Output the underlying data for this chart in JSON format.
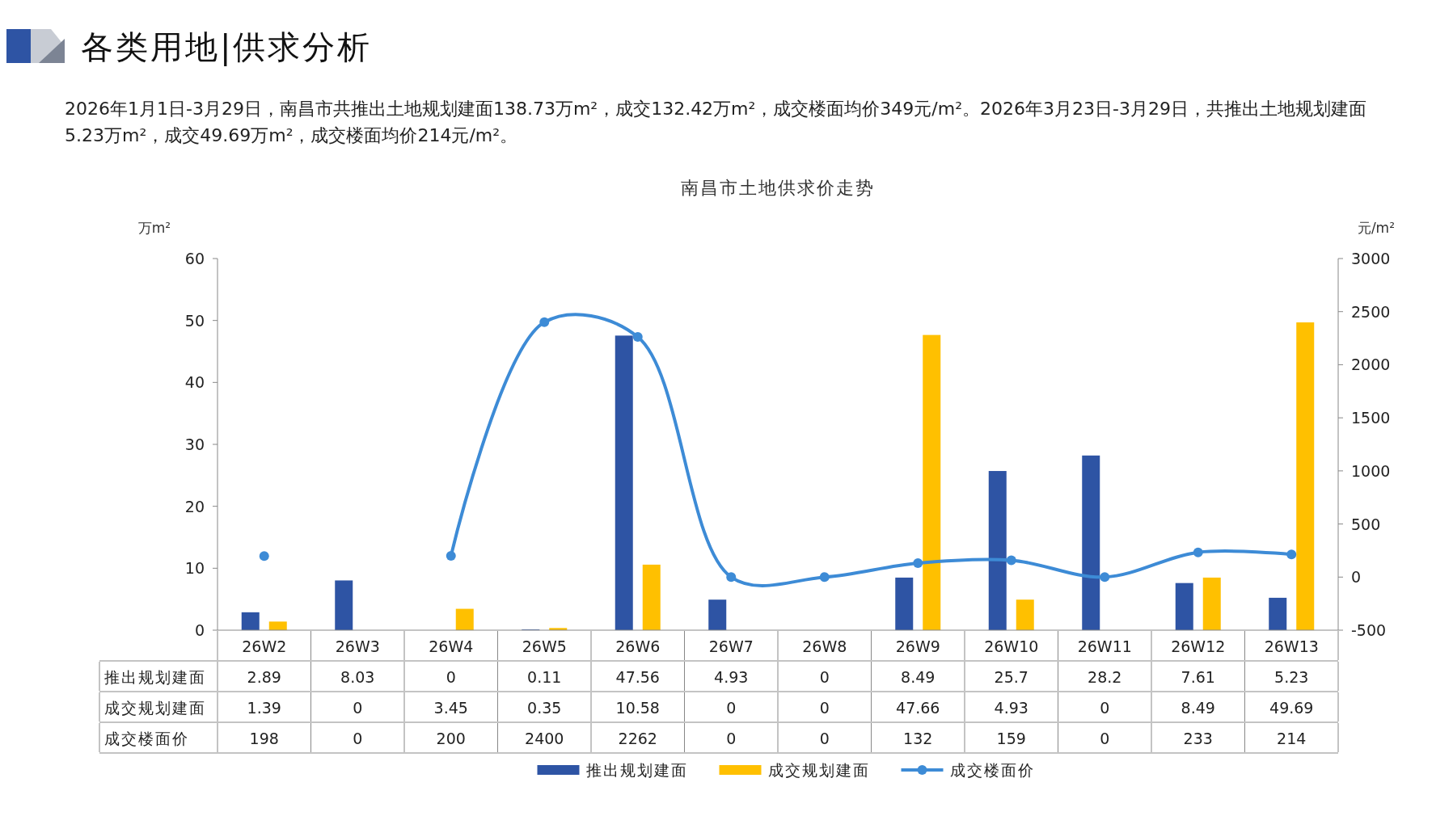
{
  "chart_data": {
    "type": "bar",
    "title": "各类用地|供求分析",
    "subtitle": "2026年1月1日-3月29日，南昌市共推出土地规划建面138.73万m²，成交132.42万m²，成交楼面均价349元/m²。2026年3月23日-3月29日，共推出土地规划建面5.23万m²，成交49.69万m²，成交楼面均价214元/m²。",
    "annotations": [
      "南昌市土地供求价走势"
    ],
    "ylabel": "万m²",
    "y2label": "元/m²",
    "categories": [
      "26W2",
      "26W3",
      "26W4",
      "26W5",
      "26W6",
      "26W7",
      "26W8",
      "26W9",
      "26W10",
      "26W11",
      "26W12",
      "26W13"
    ],
    "series": [
      {
        "name": "推出规划建面",
        "color": "#2e54a4",
        "values": [
          2.89,
          8.03,
          0,
          0.11,
          47.56,
          4.93,
          0,
          8.49,
          25.7,
          28.2,
          7.61,
          5.23
        ],
        "value_labels": [
          "2.89",
          "8.03",
          "0",
          "0.11",
          "47.56",
          "4.93",
          "0",
          "8.49",
          "25.7",
          "28.2",
          "7.61",
          "5.23"
        ]
      },
      {
        "name": "成交规划建面",
        "color": "#ffc000",
        "values": [
          1.39,
          0,
          3.45,
          0.35,
          10.58,
          0,
          0,
          47.66,
          4.93,
          0,
          8.49,
          49.69
        ],
        "value_labels": [
          "1.39",
          "0",
          "3.45",
          "0.35",
          "10.58",
          "0",
          "0",
          "47.66",
          "4.93",
          "0",
          "8.49",
          "49.69"
        ]
      },
      {
        "name": "成交楼面价",
        "type": "line",
        "axis": "y2",
        "color": "#3d8bd6",
        "values": [
          198,
          null,
          200,
          2400,
          2262,
          0,
          0,
          132,
          159,
          0,
          233,
          214
        ],
        "value_labels": [
          "198",
          "0",
          "200",
          "2400",
          "2262",
          "0",
          "0",
          "132",
          "159",
          "0",
          "233",
          "214"
        ]
      }
    ],
    "ylim": [
      0,
      60
    ],
    "yticks": [
      0,
      10,
      20,
      30,
      40,
      50,
      60
    ],
    "y2lim": [
      -500,
      3000
    ],
    "y2ticks": [
      -500,
      0,
      500,
      1000,
      1500,
      2000,
      2500,
      3000
    ],
    "marker": "circle",
    "line_style": "solid",
    "legend": "bottom",
    "grid": false
  }
}
